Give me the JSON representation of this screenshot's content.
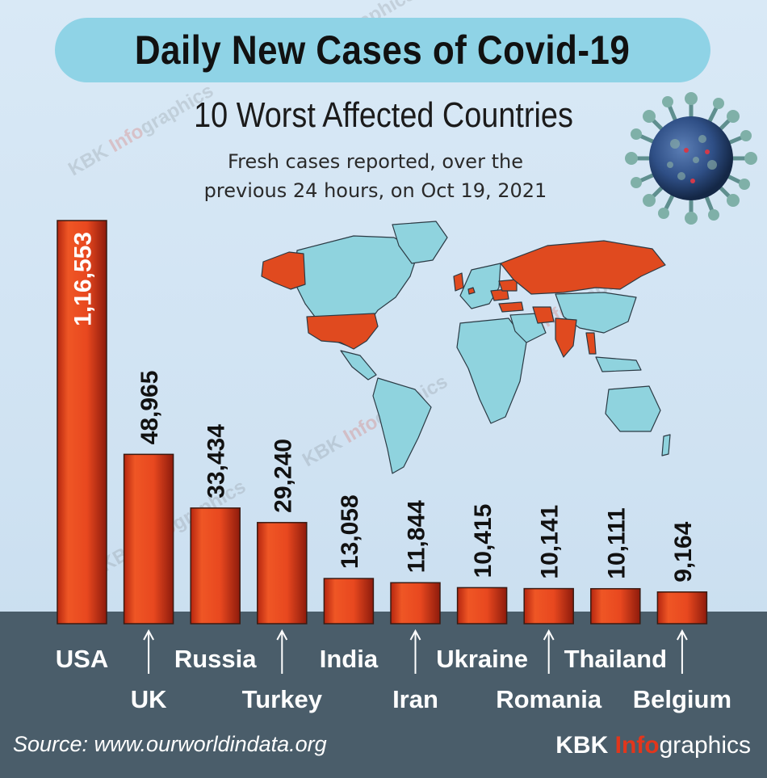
{
  "title": "Daily New Cases of Covid-19",
  "subtitle": "10 Worst Affected Countries",
  "description_line1": "Fresh cases reported, over the",
  "description_line2": "previous 24 hours, on Oct 19, 2021",
  "source": "Source: www.ourworldindata.org",
  "brand": {
    "part1": "KBK ",
    "part2": "Info",
    "part3": "graphics"
  },
  "colors": {
    "bar": "#e8481f",
    "bar_dark": "#a81f10",
    "ground": "#4a5d6a",
    "title_pill": "#8fd3e6",
    "map_highlight": "#e04a1f",
    "map_land": "#8fd3de"
  },
  "icons": {
    "virus": "coronavirus-icon",
    "map": "world-map-icon",
    "arrow": "up-arrow-icon"
  },
  "chart_data": {
    "type": "bar",
    "categories": [
      "USA",
      "UK",
      "Russia",
      "Turkey",
      "India",
      "Iran",
      "Ukraine",
      "Romania",
      "Thailand",
      "Belgium"
    ],
    "values": [
      116553,
      48965,
      33434,
      29240,
      13058,
      11844,
      10415,
      10141,
      10111,
      9164
    ],
    "data_labels": [
      "1,16,553",
      "48,965",
      "33,434",
      "29,240",
      "13,058",
      "11,844",
      "10,415",
      "10,141",
      "10,111",
      "9,164"
    ],
    "title": "Daily New Cases of Covid-19",
    "xlabel": "",
    "ylabel": "",
    "grid": false,
    "legend": "none"
  }
}
